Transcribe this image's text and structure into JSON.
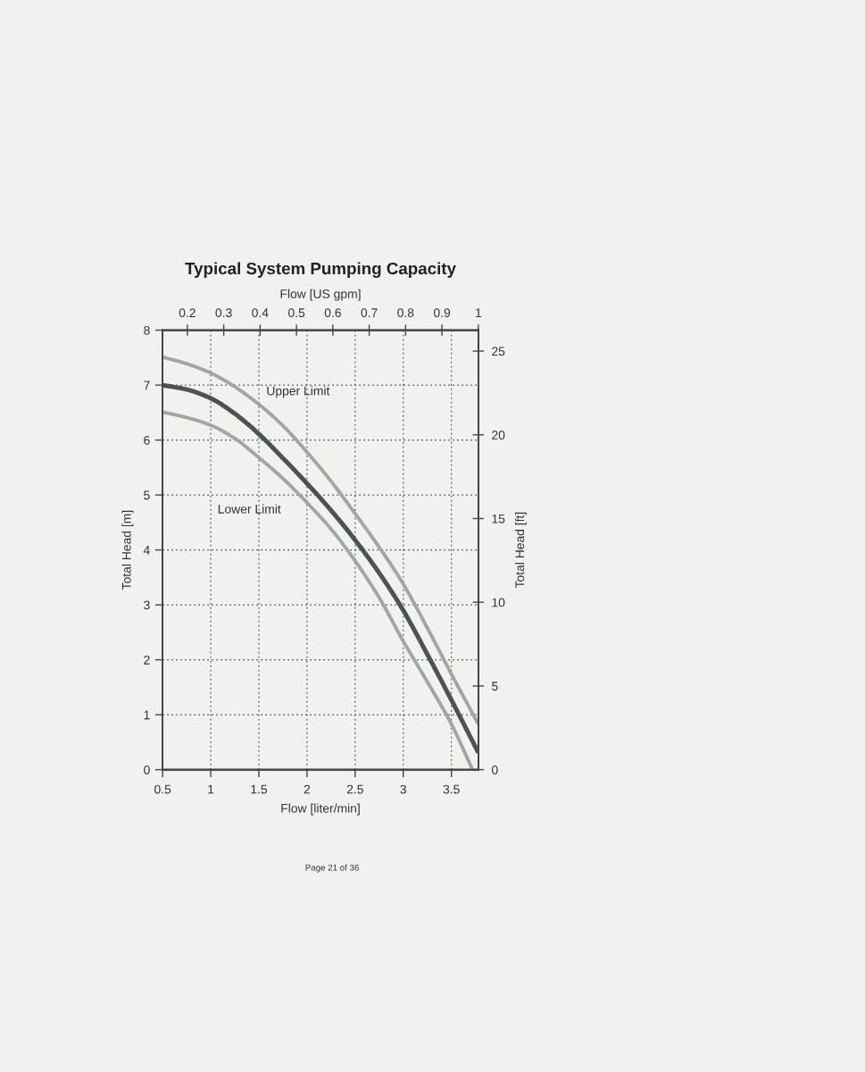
{
  "chart_data": {
    "type": "line",
    "title": "Typical System Pumping Capacity",
    "xlabel": "Flow [liter/min]",
    "x2label": "Flow [US gpm]",
    "ylabel": "Total Head [m]",
    "y2label": "Total Head [ft]",
    "series": [
      {
        "name": "Upper Limit",
        "color": "#a2a5a5",
        "x": [
          0.5,
          0.75,
          1.0,
          1.25,
          1.5,
          1.75,
          2.0,
          2.25,
          2.5,
          2.75,
          3.0,
          3.25,
          3.5,
          3.78
        ],
        "values": [
          7.51,
          7.39,
          7.22,
          6.97,
          6.65,
          6.26,
          5.78,
          5.25,
          4.66,
          4.05,
          3.38,
          2.58,
          1.74,
          0.83
        ]
      },
      {
        "color": "#4d5252",
        "x": [
          0.5,
          0.75,
          1.0,
          1.25,
          1.5,
          1.75,
          2.0,
          2.25,
          2.5,
          2.75,
          3.0,
          3.25,
          3.5,
          3.78
        ],
        "values": [
          7.0,
          6.92,
          6.76,
          6.48,
          6.11,
          5.67,
          5.21,
          4.72,
          4.18,
          3.58,
          2.9,
          2.1,
          1.27,
          0.31
        ]
      },
      {
        "name": "Lower Limit",
        "color": "#a2a5a5",
        "x": [
          0.5,
          0.75,
          1.0,
          1.25,
          1.5,
          1.75,
          2.0,
          2.25,
          2.5,
          2.75,
          3.0,
          3.25,
          3.5,
          3.72
        ],
        "values": [
          6.51,
          6.41,
          6.27,
          6.03,
          5.68,
          5.3,
          4.86,
          4.38,
          3.8,
          3.13,
          2.34,
          1.6,
          0.83,
          0.0
        ]
      }
    ],
    "xlim": [
      0.5,
      3.78
    ],
    "xticks": [
      0.5,
      1,
      1.5,
      2,
      2.5,
      3,
      3.5
    ],
    "x2lim": [
      0.132,
      1
    ],
    "x2ticks": [
      0.2,
      0.3,
      0.4,
      0.5,
      0.6,
      0.7,
      0.8,
      0.9,
      1
    ],
    "ylim": [
      0,
      8
    ],
    "yticks": [
      0,
      1,
      2,
      3,
      4,
      5,
      6,
      7,
      8
    ],
    "y2lim": [
      0,
      26.25
    ],
    "y2ticks": [
      0,
      5,
      10,
      15,
      20,
      25
    ],
    "grid": true,
    "annotations": [
      "Page 21 of 36"
    ]
  }
}
